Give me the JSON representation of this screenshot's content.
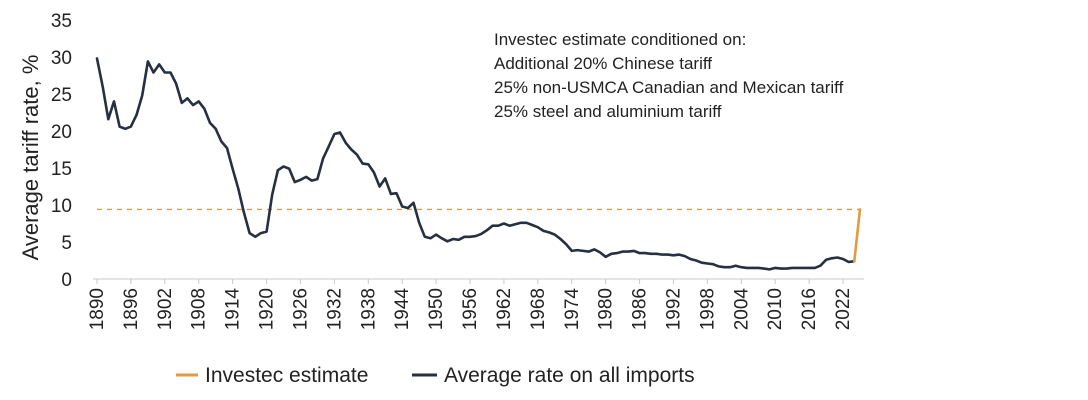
{
  "chart_data": {
    "type": "line",
    "title": "",
    "xlabel": "",
    "ylabel": "Average tariff rate, %",
    "xlim": [
      1890,
      2025
    ],
    "ylim": [
      0,
      35
    ],
    "yticks": [
      0,
      5,
      10,
      15,
      20,
      25,
      30,
      35
    ],
    "xticks": [
      "1890",
      "1896",
      "1902",
      "1908",
      "1914",
      "1920",
      "1926",
      "1932",
      "1938",
      "1944",
      "1950",
      "1956",
      "1962",
      "1968",
      "1974",
      "1980",
      "1986",
      "1992",
      "1998",
      "2004",
      "2010",
      "2016",
      "2022"
    ],
    "grid": false,
    "annotation": [
      "Investec estimate conditioned on:",
      "Additional 20% Chinese tariff",
      "25% non-USMCA Canadian and Mexican tariff",
      "25% steel and aluminium tariff"
    ],
    "legend": [
      "Investec estimate",
      "Average rate on all imports"
    ],
    "reference_line": {
      "name": "Investec estimate level",
      "value": 9.4,
      "style": "dashed"
    },
    "series": [
      {
        "name": "Average rate on all imports",
        "color": "#263040",
        "x": [
          1890,
          1891,
          1892,
          1893,
          1894,
          1895,
          1896,
          1897,
          1898,
          1899,
          1900,
          1901,
          1902,
          1903,
          1904,
          1905,
          1906,
          1907,
          1908,
          1909,
          1910,
          1911,
          1912,
          1913,
          1914,
          1915,
          1916,
          1917,
          1918,
          1919,
          1920,
          1921,
          1922,
          1923,
          1924,
          1925,
          1926,
          1927,
          1928,
          1929,
          1930,
          1931,
          1932,
          1933,
          1934,
          1935,
          1936,
          1937,
          1938,
          1939,
          1940,
          1941,
          1942,
          1943,
          1944,
          1945,
          1946,
          1947,
          1948,
          1949,
          1950,
          1951,
          1952,
          1953,
          1954,
          1955,
          1956,
          1957,
          1958,
          1959,
          1960,
          1961,
          1962,
          1963,
          1964,
          1965,
          1966,
          1967,
          1968,
          1969,
          1970,
          1971,
          1972,
          1973,
          1974,
          1975,
          1976,
          1977,
          1978,
          1979,
          1980,
          1981,
          1982,
          1983,
          1984,
          1985,
          1986,
          1987,
          1988,
          1989,
          1990,
          1991,
          1992,
          1993,
          1994,
          1995,
          1996,
          1997,
          1998,
          1999,
          2000,
          2001,
          2002,
          2003,
          2004,
          2005,
          2006,
          2007,
          2008,
          2009,
          2010,
          2011,
          2012,
          2013,
          2014,
          2015,
          2016,
          2017,
          2018,
          2019,
          2020,
          2021,
          2022,
          2023,
          2024
        ],
        "values": [
          29.8,
          26.0,
          21.6,
          24.0,
          20.6,
          20.3,
          20.6,
          22.2,
          24.8,
          29.4,
          27.9,
          29.0,
          27.9,
          27.9,
          26.4,
          23.8,
          24.4,
          23.5,
          24.0,
          23.0,
          21.1,
          20.3,
          18.6,
          17.7,
          14.9,
          12.2,
          9.0,
          6.2,
          5.7,
          6.2,
          6.4,
          11.4,
          14.7,
          15.2,
          14.9,
          13.1,
          13.4,
          13.8,
          13.3,
          13.5,
          16.3,
          17.9,
          19.6,
          19.8,
          18.4,
          17.5,
          16.8,
          15.6,
          15.5,
          14.4,
          12.5,
          13.6,
          11.5,
          11.6,
          9.8,
          9.6,
          10.3,
          7.6,
          5.7,
          5.5,
          6.0,
          5.5,
          5.1,
          5.4,
          5.3,
          5.7,
          5.7,
          5.8,
          6.1,
          6.6,
          7.2,
          7.2,
          7.5,
          7.2,
          7.4,
          7.6,
          7.6,
          7.3,
          7.0,
          6.5,
          6.3,
          6.0,
          5.4,
          4.7,
          3.8,
          3.9,
          3.8,
          3.7,
          4.0,
          3.6,
          3.0,
          3.4,
          3.5,
          3.7,
          3.7,
          3.8,
          3.5,
          3.5,
          3.4,
          3.4,
          3.3,
          3.3,
          3.2,
          3.3,
          3.1,
          2.7,
          2.5,
          2.2,
          2.1,
          2.0,
          1.7,
          1.6,
          1.6,
          1.8,
          1.6,
          1.5,
          1.5,
          1.5,
          1.4,
          1.3,
          1.5,
          1.4,
          1.4,
          1.5,
          1.5,
          1.5,
          1.5,
          1.5,
          1.8,
          2.6,
          2.8,
          2.9,
          2.7,
          2.3,
          2.4
        ]
      },
      {
        "name": "Investec estimate",
        "color": "#e39a40",
        "x": [
          2024,
          2025
        ],
        "values": [
          2.4,
          9.4
        ]
      }
    ]
  }
}
